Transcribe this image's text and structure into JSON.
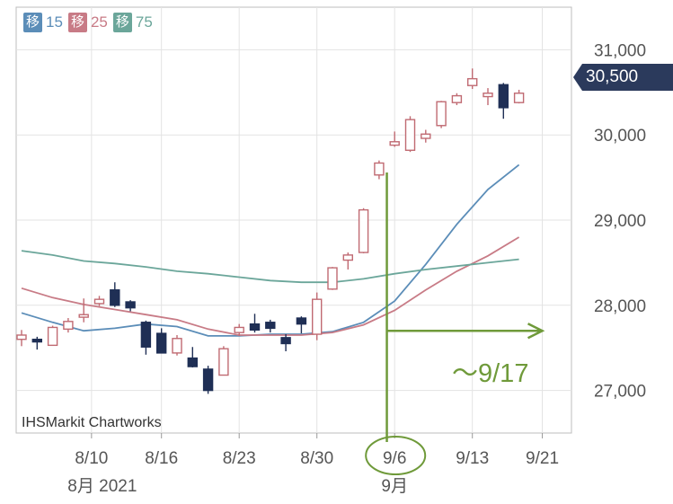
{
  "chart_data": {
    "type": "candlestick",
    "source": "IHSMarkit Chartworks",
    "legend": [
      {
        "badge": "移",
        "period": "15",
        "color": "#5b8db8"
      },
      {
        "badge": "移",
        "period": "25",
        "color": "#c87b86"
      },
      {
        "badge": "移",
        "period": "75",
        "color": "#6ba69a"
      }
    ],
    "current_price": "30,500",
    "y_ticks": [
      {
        "value": 31000,
        "label": "31,000"
      },
      {
        "value": 30000,
        "label": "30,000"
      },
      {
        "value": 29000,
        "label": "29,000"
      },
      {
        "value": 28000,
        "label": "28,000"
      },
      {
        "value": 27000,
        "label": "27,000"
      }
    ],
    "ylim": [
      26500,
      31500
    ],
    "x_ticks": [
      {
        "label": "8/10",
        "index": 4.5,
        "sub": "8月 2021"
      },
      {
        "label": "8/16",
        "index": 9
      },
      {
        "label": "8/23",
        "index": 14
      },
      {
        "label": "8/30",
        "index": 19
      },
      {
        "label": "9/6",
        "index": 24,
        "sub": "9月",
        "highlight": true
      },
      {
        "label": "9/13",
        "index": 29
      },
      {
        "label": "9/21",
        "index": 33.5
      }
    ],
    "candles": [
      {
        "o": 27600,
        "h": 27710,
        "l": 27520,
        "c": 27650
      },
      {
        "o": 27600,
        "h": 27630,
        "l": 27480,
        "c": 27570
      },
      {
        "o": 27530,
        "h": 27760,
        "l": 27530,
        "c": 27740
      },
      {
        "o": 27720,
        "h": 27850,
        "l": 27680,
        "c": 27810
      },
      {
        "o": 27860,
        "h": 28080,
        "l": 27800,
        "c": 27890
      },
      {
        "o": 28020,
        "h": 28110,
        "l": 27990,
        "c": 28070
      },
      {
        "o": 28180,
        "h": 28270,
        "l": 27980,
        "c": 28000
      },
      {
        "o": 28040,
        "h": 28060,
        "l": 27930,
        "c": 27970
      },
      {
        "o": 27800,
        "h": 27820,
        "l": 27420,
        "c": 27510
      },
      {
        "o": 27670,
        "h": 27730,
        "l": 27440,
        "c": 27440
      },
      {
        "o": 27440,
        "h": 27650,
        "l": 27410,
        "c": 27610
      },
      {
        "o": 27380,
        "h": 27510,
        "l": 27270,
        "c": 27280
      },
      {
        "o": 27250,
        "h": 27290,
        "l": 26960,
        "c": 27000
      },
      {
        "o": 27180,
        "h": 27520,
        "l": 27180,
        "c": 27490
      },
      {
        "o": 27680,
        "h": 27780,
        "l": 27640,
        "c": 27740
      },
      {
        "o": 27780,
        "h": 27900,
        "l": 27680,
        "c": 27710
      },
      {
        "o": 27800,
        "h": 27830,
        "l": 27680,
        "c": 27730
      },
      {
        "o": 27620,
        "h": 27660,
        "l": 27460,
        "c": 27550
      },
      {
        "o": 27850,
        "h": 27870,
        "l": 27670,
        "c": 27780
      },
      {
        "o": 27660,
        "h": 28150,
        "l": 27590,
        "c": 28070
      },
      {
        "o": 28190,
        "h": 28450,
        "l": 28180,
        "c": 28440
      },
      {
        "o": 28530,
        "h": 28620,
        "l": 28420,
        "c": 28590
      },
      {
        "o": 28620,
        "h": 29140,
        "l": 28610,
        "c": 29120
      },
      {
        "o": 29530,
        "h": 29700,
        "l": 29480,
        "c": 29670
      },
      {
        "o": 29880,
        "h": 30040,
        "l": 29860,
        "c": 29920
      },
      {
        "o": 29820,
        "h": 30220,
        "l": 29800,
        "c": 30180
      },
      {
        "o": 29960,
        "h": 30060,
        "l": 29910,
        "c": 30010
      },
      {
        "o": 30110,
        "h": 30400,
        "l": 30080,
        "c": 30390
      },
      {
        "o": 30380,
        "h": 30490,
        "l": 30350,
        "c": 30460
      },
      {
        "o": 30580,
        "h": 30780,
        "l": 30540,
        "c": 30660
      },
      {
        "o": 30450,
        "h": 30550,
        "l": 30350,
        "c": 30490
      },
      {
        "o": 30590,
        "h": 30610,
        "l": 30190,
        "c": 30320
      },
      {
        "o": 30380,
        "h": 30530,
        "l": 30370,
        "c": 30490
      }
    ],
    "series": [
      {
        "name": "15",
        "color": "#5b8db8",
        "x": [
          0,
          2,
          4,
          6,
          8,
          10,
          12,
          14,
          16,
          18,
          20,
          22,
          24,
          26,
          28,
          30,
          32
        ],
        "values": [
          27910,
          27800,
          27700,
          27730,
          27780,
          27750,
          27640,
          27640,
          27660,
          27660,
          27690,
          27800,
          28050,
          28480,
          28950,
          29360,
          29650
        ]
      },
      {
        "name": "25",
        "color": "#c87b86",
        "x": [
          0,
          2,
          4,
          6,
          8,
          10,
          12,
          14,
          16,
          18,
          20,
          22,
          24,
          26,
          28,
          30,
          32
        ],
        "values": [
          28200,
          28090,
          28010,
          27950,
          27890,
          27830,
          27720,
          27650,
          27650,
          27650,
          27680,
          27770,
          27940,
          28180,
          28400,
          28580,
          28800
        ]
      },
      {
        "name": "75",
        "color": "#6ba69a",
        "x": [
          0,
          2,
          4,
          6,
          8,
          10,
          12,
          14,
          16,
          18,
          20,
          22,
          24,
          26,
          28,
          30,
          32
        ],
        "values": [
          28640,
          28590,
          28520,
          28490,
          28450,
          28400,
          28370,
          28330,
          28290,
          28270,
          28270,
          28310,
          28370,
          28420,
          28460,
          28500,
          28540
        ]
      }
    ],
    "annotations": {
      "vline_index": 23.5,
      "arrow_from_index": 23.5,
      "arrow_to_index": 33.5,
      "arrow_value": 27700,
      "text": "～9/17",
      "color": "#6f9a3a"
    }
  }
}
